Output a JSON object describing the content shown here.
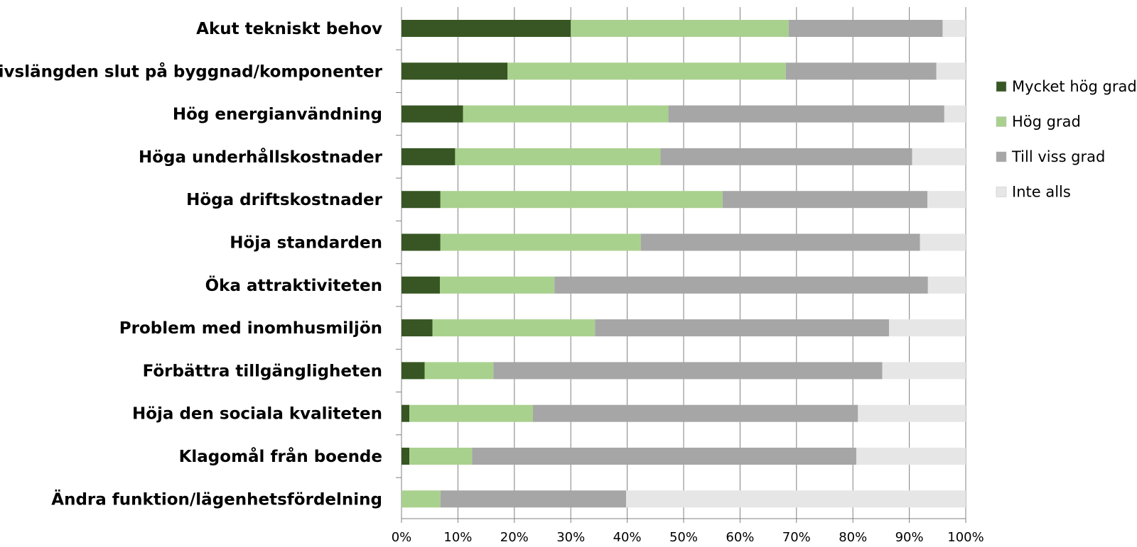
{
  "chart_data": {
    "type": "bar",
    "orientation": "horizontal",
    "stacked": "100%",
    "title": "",
    "xlabel": "",
    "ylabel": "",
    "xlim": [
      0,
      100
    ],
    "x_ticks": [
      "0%",
      "10%",
      "20%",
      "30%",
      "40%",
      "50%",
      "60%",
      "70%",
      "80%",
      "90%",
      "100%"
    ],
    "grid": "vertical",
    "legend_position": "right",
    "categories": [
      "Akut tekniskt behov",
      "Livslängden slut på byggnad/komponenter",
      "Hög energianvändning",
      "Höga underhållskostnader",
      "Höga driftskostnader",
      "Höja standarden",
      "Öka attraktiviteten",
      "Problem med inomhusmiljön",
      "Förbättra tillgängligheten",
      "Höja den sociala kvaliteten",
      "Klagomål från boende",
      "Ändra funktion/lägenhetsfördelning"
    ],
    "series": [
      {
        "name": "Mycket hög grad",
        "color": "#375623",
        "values": [
          30,
          18.8,
          10.9,
          9.5,
          6.9,
          6.9,
          6.8,
          5.5,
          4.1,
          1.4,
          1.4,
          0
        ]
      },
      {
        "name": "Hög grad",
        "color": "#a9d18e",
        "values": [
          38.6,
          49.3,
          36.4,
          36.4,
          50,
          35.5,
          20.3,
          28.8,
          12.2,
          21.9,
          11.1,
          6.9
        ]
      },
      {
        "name": "Till viss grad",
        "color": "#a6a6a6",
        "values": [
          27.3,
          26.7,
          48.9,
          44.6,
          36.3,
          49.5,
          66.2,
          52.1,
          68.9,
          57.6,
          68.1,
          32.9
        ]
      },
      {
        "name": "Inte alls",
        "color": "#e7e6e6",
        "values": [
          4.1,
          5.2,
          3.8,
          9.5,
          6.8,
          8.1,
          6.7,
          13.6,
          14.8,
          19.1,
          19.4,
          60.2
        ]
      }
    ]
  }
}
